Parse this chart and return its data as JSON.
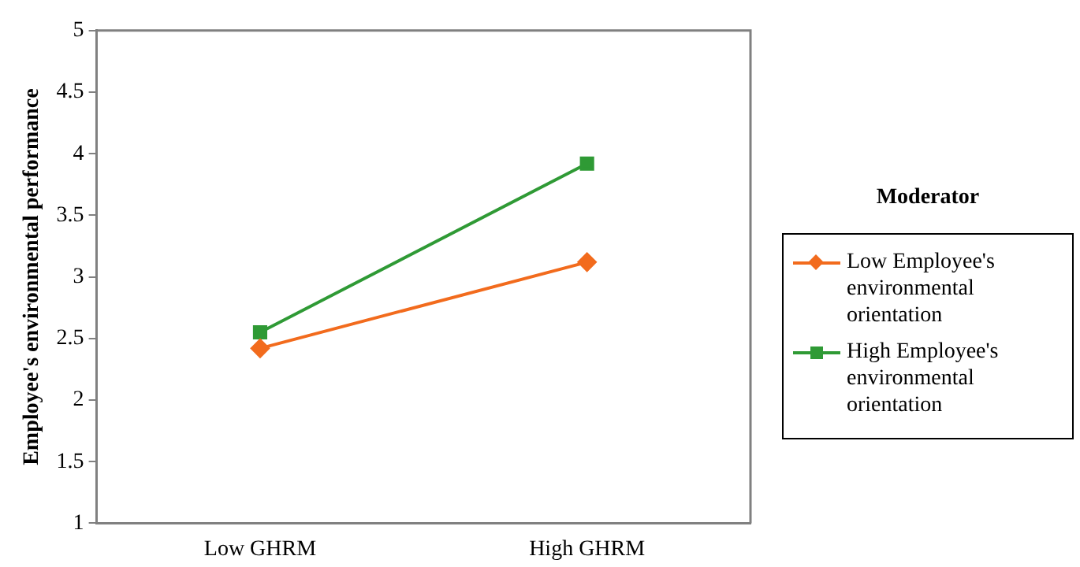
{
  "chart_data": {
    "type": "line",
    "ylabel": "Employee's environmental performance",
    "legend_title": "Moderator",
    "categories": [
      "Low GHRM",
      "High GHRM"
    ],
    "series": [
      {
        "name": "Low Employee's environmental orientation",
        "color": "#f26b1d",
        "marker": "diamond",
        "values": [
          2.42,
          3.12
        ]
      },
      {
        "name": "High Employee's environmental orientation",
        "color": "#2f9a35",
        "marker": "square",
        "values": [
          2.55,
          3.92
        ]
      }
    ],
    "ylim": [
      1,
      5
    ],
    "yticks": [
      1,
      1.5,
      2,
      2.5,
      3,
      3.5,
      4,
      4.5,
      5
    ],
    "grid": false,
    "legend": "right",
    "line_style": "solid"
  }
}
